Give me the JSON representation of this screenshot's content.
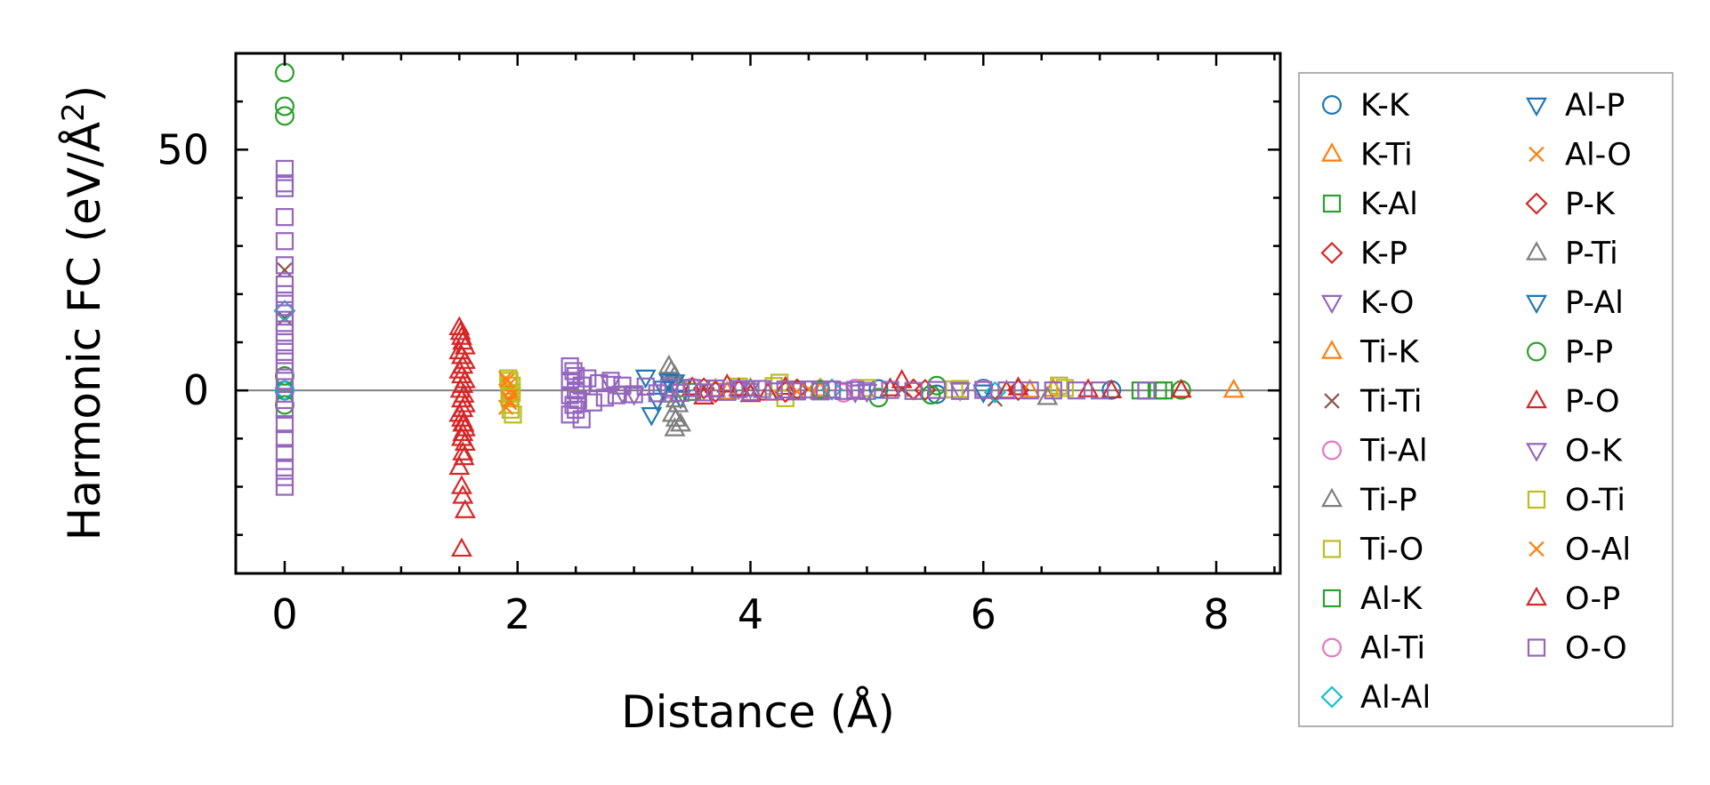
{
  "chart_data": {
    "type": "scatter",
    "title": "",
    "xlabel": "Distance (Å)",
    "ylabel_main": "Harmonic FC (eV/Å",
    "ylabel_sup": "2",
    "ylabel_close": ")",
    "xlim": [
      -0.42,
      8.55
    ],
    "ylim": [
      -38,
      70
    ],
    "x_ticks": [
      0,
      2,
      4,
      6,
      8
    ],
    "y_ticks": [
      0,
      50
    ],
    "x_tick_labels": [
      "0",
      "2",
      "4",
      "6",
      "8"
    ],
    "y_tick_labels": [
      "0",
      "50"
    ],
    "zero_line": true,
    "legend_position": "outside-right",
    "series": [
      {
        "name": "K-K",
        "marker": "circle",
        "color": "#1f77b4",
        "points": [
          [
            5.1,
            0.3
          ],
          [
            5.6,
            -0.8
          ],
          [
            6.0,
            0.4
          ],
          [
            7.1,
            0.1
          ],
          [
            0,
            0
          ]
        ]
      },
      {
        "name": "K-Ti",
        "marker": "triangle-up",
        "color": "#ff7f0e",
        "points": [
          [
            3.7,
            0.2
          ],
          [
            4.6,
            -0.4
          ],
          [
            6.6,
            0.2
          ],
          [
            8.15,
            0.0
          ]
        ]
      },
      {
        "name": "K-Al",
        "marker": "square",
        "color": "#2ca02c",
        "points": [
          [
            3.4,
            0.5
          ],
          [
            4.4,
            0.2
          ],
          [
            7.4,
            0.0
          ],
          [
            7.55,
            0.0
          ]
        ]
      },
      {
        "name": "K-P",
        "marker": "diamond",
        "color": "#d62728",
        "points": [
          [
            3.6,
            0.4
          ],
          [
            4.3,
            -0.3
          ],
          [
            5.4,
            0.2
          ],
          [
            6.3,
            0.1
          ]
        ]
      },
      {
        "name": "K-O",
        "marker": "triangle-down",
        "color": "#9467bd",
        "points": [
          [
            2.8,
            1.5
          ],
          [
            3.0,
            -0.8
          ],
          [
            4.0,
            0.6
          ],
          [
            4.9,
            -0.3
          ],
          [
            5.8,
            0.1
          ]
        ]
      },
      {
        "name": "Ti-K",
        "marker": "triangle-up",
        "color": "#ff7f0e",
        "points": [
          [
            3.8,
            -0.4
          ],
          [
            4.6,
            0.3
          ],
          [
            6.4,
            0.0
          ]
        ]
      },
      {
        "name": "Ti-Ti",
        "marker": "x",
        "color": "#8c564b",
        "points": [
          [
            0,
            25
          ],
          [
            0,
            15
          ],
          [
            3.6,
            0.7
          ],
          [
            5.3,
            0.2
          ],
          [
            6.1,
            -1.8
          ]
        ]
      },
      {
        "name": "Ti-Al",
        "marker": "circle",
        "color": "#e377c2",
        "points": [
          [
            3.5,
            0.6
          ],
          [
            4.8,
            -0.5
          ],
          [
            6.0,
            0.2
          ]
        ]
      },
      {
        "name": "Ti-P",
        "marker": "triangle-up",
        "color": "#7f7f7f",
        "points": [
          [
            3.3,
            5
          ],
          [
            3.35,
            3
          ],
          [
            3.38,
            1
          ],
          [
            3.3,
            -1
          ],
          [
            3.38,
            -3
          ],
          [
            3.33,
            -5
          ],
          [
            3.36,
            -6
          ],
          [
            3.35,
            -8
          ],
          [
            4.0,
            0.3
          ],
          [
            6.55,
            -1.5
          ]
        ]
      },
      {
        "name": "Ti-O",
        "marker": "square",
        "color": "#bcbd22",
        "points": [
          [
            1.92,
            2.5
          ],
          [
            1.95,
            1
          ],
          [
            1.93,
            -1.5
          ],
          [
            1.94,
            -3
          ],
          [
            1.96,
            -5
          ],
          [
            3.9,
            0.8
          ],
          [
            4.25,
            1.6
          ],
          [
            4.3,
            -1.6
          ],
          [
            5.0,
            0.5
          ],
          [
            5.8,
            0.3
          ],
          [
            6.65,
            1.0
          ]
        ]
      },
      {
        "name": "Al-K",
        "marker": "square",
        "color": "#2ca02c",
        "points": [
          [
            3.5,
            -0.3
          ],
          [
            4.6,
            0.2
          ],
          [
            7.35,
            0.0
          ],
          [
            7.5,
            0.0
          ]
        ]
      },
      {
        "name": "Al-Ti",
        "marker": "circle",
        "color": "#e377c2",
        "points": [
          [
            3.3,
            0.3
          ],
          [
            4.9,
            0.4
          ]
        ]
      },
      {
        "name": "Al-Al",
        "marker": "diamond",
        "color": "#17becf",
        "points": [
          [
            0,
            16.5
          ],
          [
            0,
            0
          ],
          [
            4.7,
            0.2
          ],
          [
            6.1,
            -0.4
          ]
        ]
      },
      {
        "name": "Al-P",
        "marker": "triangle-down",
        "color": "#1f77b4",
        "points": [
          [
            3.1,
            2.8
          ],
          [
            3.15,
            -5
          ],
          [
            3.25,
            0.5
          ],
          [
            3.35,
            1.8
          ],
          [
            3.4,
            -1.5
          ],
          [
            6.0,
            -0.3
          ]
        ]
      },
      {
        "name": "Al-O",
        "marker": "x",
        "color": "#ff7f0e",
        "points": [
          [
            1.9,
            2.5
          ],
          [
            1.92,
            1
          ],
          [
            1.94,
            0
          ],
          [
            1.95,
            -1
          ],
          [
            1.93,
            -2.5
          ],
          [
            1.9,
            -3.5
          ],
          [
            4.5,
            0.3
          ]
        ]
      },
      {
        "name": "P-K",
        "marker": "diamond",
        "color": "#d62728",
        "points": [
          [
            3.7,
            -0.3
          ],
          [
            4.4,
            0.2
          ],
          [
            5.5,
            0.1
          ]
        ]
      },
      {
        "name": "P-Ti",
        "marker": "triangle-up",
        "color": "#7f7f7f",
        "points": [
          [
            3.32,
            4
          ],
          [
            3.36,
            -2
          ],
          [
            3.4,
            -7
          ]
        ]
      },
      {
        "name": "P-Al",
        "marker": "triangle-down",
        "color": "#1f77b4",
        "points": [
          [
            3.2,
            -2
          ],
          [
            3.3,
            2
          ]
        ]
      },
      {
        "name": "P-P",
        "marker": "circle",
        "color": "#2ca02c",
        "points": [
          [
            0,
            66
          ],
          [
            0,
            59
          ],
          [
            0,
            57
          ],
          [
            0,
            3
          ],
          [
            0,
            -3
          ],
          [
            4.6,
            0.2
          ],
          [
            5.1,
            -1.5
          ],
          [
            5.55,
            -0.9
          ],
          [
            5.6,
            1.0
          ],
          [
            7.7,
            0.1
          ]
        ]
      },
      {
        "name": "P-O",
        "marker": "triangle-up",
        "color": "#d62728",
        "points": [
          [
            1.5,
            13
          ],
          [
            1.52,
            11
          ],
          [
            1.53,
            10
          ],
          [
            1.55,
            9
          ],
          [
            1.5,
            8
          ],
          [
            1.52,
            7
          ],
          [
            1.55,
            6
          ],
          [
            1.53,
            5
          ],
          [
            1.5,
            4
          ],
          [
            1.52,
            3
          ],
          [
            1.55,
            2
          ],
          [
            1.53,
            1
          ],
          [
            1.51,
            0
          ],
          [
            1.54,
            -1
          ],
          [
            1.52,
            -2
          ],
          [
            1.55,
            -3
          ],
          [
            1.53,
            -4
          ],
          [
            1.5,
            -5
          ],
          [
            1.52,
            -6
          ],
          [
            1.54,
            -7
          ],
          [
            1.55,
            -8
          ],
          [
            1.53,
            -9
          ],
          [
            1.52,
            -10
          ],
          [
            1.55,
            -11
          ],
          [
            1.53,
            -13
          ],
          [
            1.5,
            -16
          ],
          [
            1.52,
            -20
          ],
          [
            1.53,
            -22
          ],
          [
            1.55,
            -25
          ],
          [
            1.52,
            -33
          ],
          [
            3.5,
            0.5
          ],
          [
            3.6,
            -1.4
          ],
          [
            3.8,
            1.1
          ],
          [
            4.0,
            -0.9
          ],
          [
            4.3,
            0.6
          ],
          [
            5.3,
            2.0
          ],
          [
            6.3,
            0.5
          ],
          [
            7.1,
            -0.1
          ],
          [
            7.7,
            0.0
          ]
        ]
      },
      {
        "name": "O-K",
        "marker": "triangle-down",
        "color": "#9467bd",
        "points": [
          [
            2.9,
            -0.5
          ],
          [
            3.9,
            0.4
          ],
          [
            5.0,
            -0.2
          ]
        ]
      },
      {
        "name": "O-Ti",
        "marker": "square",
        "color": "#bcbd22",
        "points": [
          [
            1.93,
            2
          ],
          [
            1.95,
            -0.5
          ],
          [
            1.94,
            -4
          ],
          [
            4.2,
            0.9
          ],
          [
            5.75,
            0.2
          ],
          [
            6.7,
            0.5
          ]
        ]
      },
      {
        "name": "O-Al",
        "marker": "x",
        "color": "#ff7f0e",
        "points": [
          [
            1.91,
            2
          ],
          [
            1.93,
            -2
          ],
          [
            4.4,
            -0.2
          ]
        ]
      },
      {
        "name": "O-P",
        "marker": "triangle-up",
        "color": "#d62728",
        "points": [
          [
            1.51,
            12
          ],
          [
            1.53,
            -7
          ],
          [
            1.54,
            -14
          ],
          [
            3.9,
            0.3
          ],
          [
            4.15,
            -0.6
          ],
          [
            5.2,
            0.3
          ],
          [
            6.2,
            -0.2
          ],
          [
            6.9,
            0.1
          ]
        ]
      },
      {
        "name": "O-O",
        "marker": "square",
        "color": "#9467bd",
        "points": [
          [
            0,
            46
          ],
          [
            0,
            43
          ],
          [
            0,
            42
          ],
          [
            0,
            36
          ],
          [
            0,
            31
          ],
          [
            0,
            26
          ],
          [
            0,
            22
          ],
          [
            0,
            20
          ],
          [
            0,
            18
          ],
          [
            0,
            16
          ],
          [
            0,
            14
          ],
          [
            0,
            12
          ],
          [
            0,
            10
          ],
          [
            0,
            8
          ],
          [
            0,
            6
          ],
          [
            0,
            4
          ],
          [
            0,
            2
          ],
          [
            0,
            -2
          ],
          [
            0,
            -4
          ],
          [
            0,
            -7
          ],
          [
            0,
            -10
          ],
          [
            0,
            -13
          ],
          [
            0,
            -16
          ],
          [
            0,
            -18
          ],
          [
            0,
            -20
          ],
          [
            2.45,
            5
          ],
          [
            2.48,
            4
          ],
          [
            2.5,
            3
          ],
          [
            2.45,
            2
          ],
          [
            2.55,
            1
          ],
          [
            2.5,
            0
          ],
          [
            2.45,
            -1
          ],
          [
            2.52,
            -2
          ],
          [
            2.48,
            -3
          ],
          [
            2.5,
            -4
          ],
          [
            2.45,
            -5
          ],
          [
            2.55,
            -6
          ],
          [
            2.6,
            2.5
          ],
          [
            2.65,
            -2.5
          ],
          [
            2.7,
            1.5
          ],
          [
            2.75,
            -1.5
          ],
          [
            2.8,
            2
          ],
          [
            2.85,
            -1
          ],
          [
            2.9,
            1
          ],
          [
            3.0,
            -0.8
          ],
          [
            3.1,
            0.8
          ],
          [
            3.2,
            -0.6
          ],
          [
            3.3,
            0.6
          ],
          [
            3.4,
            -0.5
          ],
          [
            3.5,
            0.5
          ],
          [
            3.6,
            -0.4
          ],
          [
            3.7,
            0.4
          ],
          [
            3.8,
            -0.3
          ],
          [
            3.9,
            0.3
          ],
          [
            4.0,
            -0.3
          ],
          [
            4.1,
            0.3
          ],
          [
            4.2,
            -0.2
          ],
          [
            4.3,
            0.2
          ],
          [
            4.4,
            -0.2
          ],
          [
            4.5,
            0.2
          ],
          [
            4.6,
            -0.2
          ],
          [
            4.7,
            0.2
          ],
          [
            4.8,
            -0.1
          ],
          [
            4.9,
            0.1
          ],
          [
            5.0,
            -0.1
          ],
          [
            5.2,
            0.1
          ],
          [
            5.4,
            -0.1
          ],
          [
            5.6,
            0.1
          ],
          [
            5.8,
            -0.1
          ],
          [
            6.0,
            0.1
          ],
          [
            6.2,
            0.0
          ],
          [
            6.4,
            0.0
          ],
          [
            6.6,
            0.0
          ],
          [
            6.8,
            0.0
          ],
          [
            7.0,
            0.0
          ],
          [
            7.4,
            0.0
          ]
        ]
      }
    ]
  }
}
